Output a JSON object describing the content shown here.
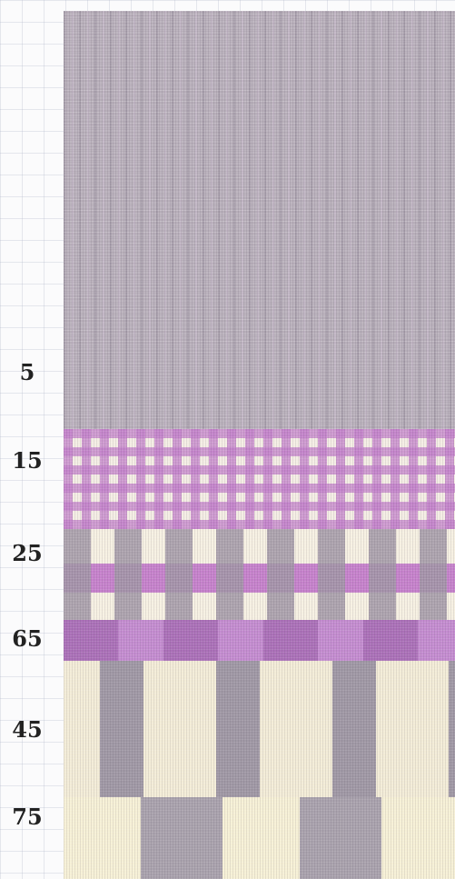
{
  "labels": [
    "5",
    "15",
    "25",
    "65",
    "45",
    "75"
  ],
  "swatch_colors": {
    "grid_background": "#fbfbfc",
    "plain_grey_lilac": "#b7aeb9",
    "lilac_check": "#c17ec9",
    "cream": "#f6f0e2",
    "grey_stripe": "#9b94a2"
  }
}
